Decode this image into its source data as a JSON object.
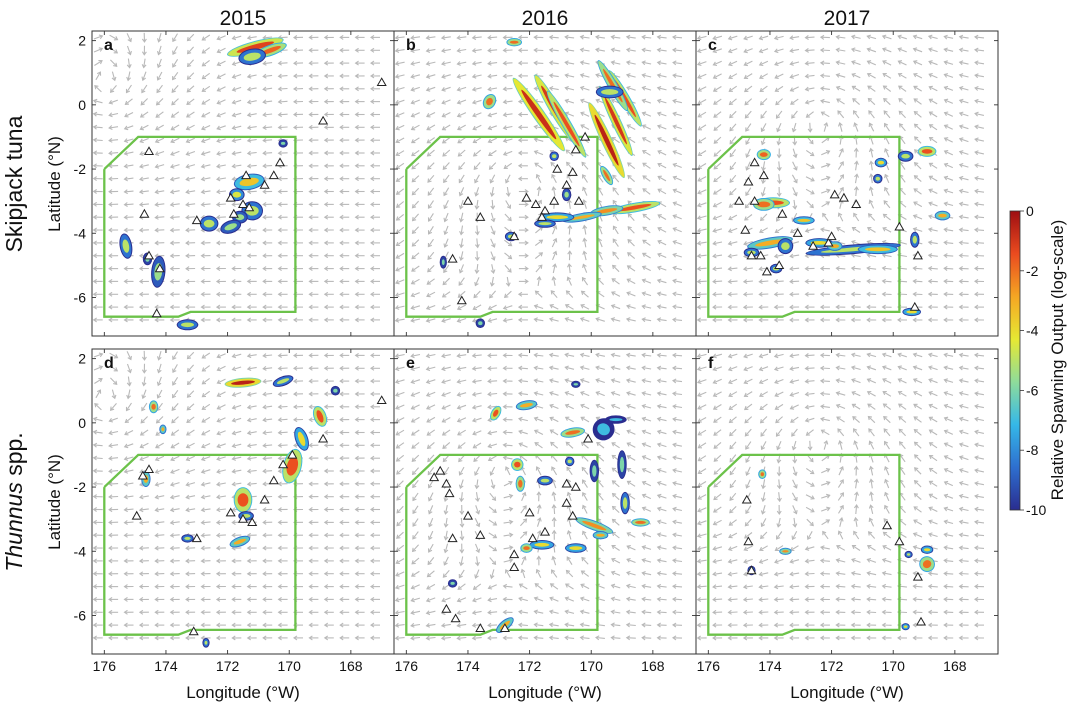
{
  "columns": [
    "2015",
    "2016",
    "2017"
  ],
  "rows": [
    {
      "label_parts": [
        {
          "text": "Skipjack tuna",
          "italic": false
        }
      ]
    },
    {
      "label_parts": [
        {
          "text": "Thunnus",
          "italic": true
        },
        {
          "text": " spp.",
          "italic": false
        }
      ]
    }
  ],
  "axes": {
    "xlabel": "Longitude (°W)",
    "ylabel": "Latitude (°N)",
    "xlim": [
      176.4,
      166.6
    ],
    "ylim": [
      -7.2,
      2.3
    ],
    "xticks": [
      176,
      174,
      172,
      170,
      168
    ],
    "yticks": [
      2,
      0,
      -2,
      -4,
      -6
    ]
  },
  "colorbar": {
    "label": "Relative Spawning Output (log-scale)",
    "range": [
      -10,
      0
    ],
    "ticks": [
      0,
      -2,
      -4,
      -6,
      -8,
      -10
    ],
    "colors": [
      "#2a2d8f",
      "#2e6fcf",
      "#35b8e8",
      "#8fdc9a",
      "#e6e833",
      "#f5a623",
      "#ea4b1f",
      "#9e0e12"
    ]
  },
  "colors": {
    "boundary": "#6cc24a",
    "current_arrow": "#b9b9b9",
    "marker": "#222222"
  },
  "boundary_polygon": [
    [
      176,
      -2
    ],
    [
      174.9,
      -1
    ],
    [
      169.8,
      -1
    ],
    [
      169.8,
      -6.45
    ],
    [
      173.2,
      -6.45
    ],
    [
      173.6,
      -6.6
    ],
    [
      176,
      -6.6
    ],
    [
      176,
      -2
    ]
  ],
  "panels": [
    {
      "letter": "a",
      "year": "2015",
      "species": "Skipjack tuna",
      "markers": [
        [
          174.55,
          -1.45
        ],
        [
          174.7,
          -3.4
        ],
        [
          174.55,
          -4.7
        ],
        [
          174.2,
          -5.1
        ],
        [
          174.3,
          -6.5
        ],
        [
          173,
          -3.6
        ],
        [
          171.9,
          -2.9
        ],
        [
          171.5,
          -3.1
        ],
        [
          171.3,
          -3.2
        ],
        [
          171.8,
          -3.4
        ],
        [
          170.8,
          -2.5
        ],
        [
          170.5,
          -2.2
        ],
        [
          170.3,
          -1.8
        ],
        [
          171.4,
          -2.2
        ],
        [
          168.9,
          -0.5
        ],
        [
          167,
          0.7
        ]
      ],
      "patches": [
        [
          171.1,
          1.8,
          0.9,
          0.14,
          -15,
          -1.2
        ],
        [
          170.6,
          1.7,
          0.5,
          0.12,
          -20,
          -1.8
        ],
        [
          171.2,
          1.5,
          0.4,
          0.2,
          -10,
          -5
        ],
        [
          175.3,
          -4.4,
          0.15,
          0.35,
          -10,
          -5
        ],
        [
          174.25,
          -5.2,
          0.18,
          0.45,
          5,
          -5.5
        ],
        [
          174.6,
          -4.8,
          0.1,
          0.15,
          0,
          -6
        ],
        [
          172.6,
          -3.7,
          0.25,
          0.2,
          0,
          -5
        ],
        [
          171.2,
          -3.3,
          0.3,
          0.25,
          0,
          -5
        ],
        [
          171.6,
          -3.5,
          0.2,
          0.15,
          0,
          -5.5
        ],
        [
          171.9,
          -3.8,
          0.3,
          0.15,
          -20,
          -5.5
        ],
        [
          171.3,
          -2.4,
          0.45,
          0.2,
          -10,
          -3.5
        ],
        [
          171.7,
          -2.8,
          0.2,
          0.15,
          0,
          -4.5
        ],
        [
          170.2,
          -1.2,
          0.1,
          0.08,
          0,
          -6
        ],
        [
          173.3,
          -6.85,
          0.3,
          0.12,
          0,
          -5
        ]
      ],
      "vortices": [
        [
          176,
          0.6,
          3.2,
          -1
        ]
      ]
    },
    {
      "letter": "b",
      "year": "2016",
      "species": "Skipjack tuna",
      "markers": [
        [
          174,
          -3
        ],
        [
          173.6,
          -3.5
        ],
        [
          174.5,
          -4.8
        ],
        [
          174.2,
          -6.1
        ],
        [
          172.5,
          -4.1
        ],
        [
          172.1,
          -2.9
        ],
        [
          171.8,
          -3.1
        ],
        [
          171.5,
          -3.3
        ],
        [
          171.2,
          -3.0
        ],
        [
          171.6,
          -3.5
        ],
        [
          170.8,
          -2.5
        ],
        [
          170.6,
          -2.1
        ],
        [
          171.1,
          -2.0
        ],
        [
          170.5,
          -1.4
        ],
        [
          170.2,
          -1.0
        ],
        [
          170.4,
          -3.0
        ]
      ],
      "patches": [
        [
          173.3,
          0.1,
          0.15,
          0.2,
          30,
          -2
        ],
        [
          172.5,
          1.95,
          0.2,
          0.08,
          0,
          -2
        ],
        [
          171.7,
          -0.3,
          1.4,
          0.14,
          55,
          -0.8
        ],
        [
          171.2,
          -0.1,
          1.2,
          0.12,
          60,
          -1
        ],
        [
          170.8,
          -0.6,
          1.2,
          0.1,
          60,
          -1.5
        ],
        [
          169.5,
          -1.1,
          1.3,
          0.12,
          65,
          -0.5
        ],
        [
          169.2,
          -0.5,
          1.2,
          0.1,
          65,
          -1
        ],
        [
          168.9,
          0.2,
          1,
          0.1,
          60,
          -1.5
        ],
        [
          169.3,
          0.6,
          0.9,
          0.1,
          60,
          -2
        ],
        [
          169.4,
          0.4,
          0.4,
          0.15,
          0,
          -5
        ],
        [
          168.6,
          -3.2,
          0.8,
          0.1,
          -10,
          -1.5
        ],
        [
          169.5,
          -3.3,
          0.5,
          0.1,
          -10,
          -2.5
        ],
        [
          170.3,
          -3.5,
          0.6,
          0.08,
          -10,
          -3
        ],
        [
          171.1,
          -3.5,
          0.5,
          0.1,
          0,
          -4
        ],
        [
          170.8,
          -2.8,
          0.1,
          0.15,
          0,
          -5.5
        ],
        [
          171.5,
          -3.7,
          0.3,
          0.08,
          0,
          -5
        ],
        [
          172.6,
          -4.1,
          0.15,
          0.1,
          0,
          -5
        ],
        [
          169.5,
          -2.2,
          0.3,
          0.08,
          60,
          -2
        ],
        [
          173.6,
          -6.8,
          0.1,
          0.1,
          0,
          -6
        ],
        [
          174.8,
          -4.9,
          0.05,
          0.15,
          0,
          -6
        ],
        [
          171.2,
          -1.6,
          0.1,
          0.1,
          0,
          -5
        ]
      ],
      "vortices": [
        [
          172.2,
          -2.3,
          4,
          1
        ]
      ]
    },
    {
      "letter": "c",
      "year": "2017",
      "species": "Skipjack tuna",
      "markers": [
        [
          174.5,
          -1.8
        ],
        [
          174.7,
          -2.4
        ],
        [
          174.2,
          -2.2
        ],
        [
          175,
          -3
        ],
        [
          174.5,
          -3
        ],
        [
          173.6,
          -3.4
        ],
        [
          174.8,
          -3.9
        ],
        [
          174.6,
          -4.7
        ],
        [
          174.3,
          -4.7
        ],
        [
          174.1,
          -5.2
        ],
        [
          173.7,
          -5
        ],
        [
          173.1,
          -4.0
        ],
        [
          172.6,
          -4.4
        ],
        [
          172.1,
          -4.3
        ],
        [
          172,
          -4.1
        ],
        [
          171.9,
          -2.8
        ],
        [
          171.6,
          -2.9
        ],
        [
          171.2,
          -3.1
        ],
        [
          169.8,
          -3.8
        ],
        [
          169.2,
          -4.7
        ],
        [
          169.3,
          -6.3
        ]
      ],
      "patches": [
        [
          174.2,
          -1.55,
          0.18,
          0.12,
          0,
          -1.8
        ],
        [
          173.9,
          -3.05,
          0.5,
          0.12,
          0,
          -1.5
        ],
        [
          174.2,
          -3.1,
          0.3,
          0.15,
          0,
          -2
        ],
        [
          172.9,
          -3.6,
          0.3,
          0.08,
          0,
          -3.5
        ],
        [
          174,
          -4.3,
          0.7,
          0.12,
          -10,
          -3
        ],
        [
          173.5,
          -4.4,
          0.2,
          0.2,
          0,
          -5
        ],
        [
          171.3,
          -4.5,
          1.5,
          0.1,
          -5,
          -5
        ],
        [
          172.4,
          -4.3,
          0.4,
          0.1,
          0,
          -4
        ],
        [
          171.9,
          -4.4,
          0.2,
          0.1,
          0,
          -3
        ],
        [
          170.5,
          -4.5,
          0.6,
          0.1,
          0,
          -3.5
        ],
        [
          170.4,
          -1.8,
          0.15,
          0.1,
          0,
          -4
        ],
        [
          170.5,
          -2.3,
          0.1,
          0.1,
          0,
          -5
        ],
        [
          169.6,
          -1.6,
          0.2,
          0.12,
          0,
          -5
        ],
        [
          168.9,
          -1.45,
          0.25,
          0.12,
          0,
          -1.5
        ],
        [
          168.4,
          -3.45,
          0.2,
          0.1,
          0,
          -3
        ],
        [
          169.3,
          -4.2,
          0.1,
          0.2,
          0,
          -5
        ],
        [
          169.4,
          -6.45,
          0.25,
          0.08,
          0,
          -4
        ],
        [
          174.6,
          -4.6,
          0.2,
          0.1,
          0,
          -5
        ],
        [
          173.8,
          -5.1,
          0.15,
          0.1,
          0,
          -5
        ]
      ],
      "vortices": [
        [
          172.4,
          -0.5,
          3.5,
          1
        ]
      ]
    },
    {
      "letter": "d",
      "year": "2015",
      "species": "Thunnus spp.",
      "markers": [
        [
          174.55,
          -1.45
        ],
        [
          174.75,
          -1.65
        ],
        [
          174.95,
          -2.9
        ],
        [
          173,
          -3.6
        ],
        [
          171.9,
          -2.8
        ],
        [
          171.5,
          -3
        ],
        [
          171.2,
          -3.1
        ],
        [
          170.8,
          -2.4
        ],
        [
          170.5,
          -1.8
        ],
        [
          170.2,
          -1.3
        ],
        [
          169.9,
          -1
        ],
        [
          168.9,
          -0.5
        ],
        [
          167,
          0.7
        ],
        [
          173.1,
          -6.5
        ]
      ],
      "patches": [
        [
          171.5,
          1.25,
          0.55,
          0.1,
          -5,
          -0.5
        ],
        [
          174.4,
          0.5,
          0.1,
          0.15,
          0,
          -2
        ],
        [
          174.1,
          -0.2,
          0.05,
          0.1,
          0,
          -3
        ],
        [
          174.65,
          -1.75,
          0.1,
          0.2,
          0,
          -3
        ],
        [
          171.5,
          -2.4,
          0.25,
          0.35,
          0,
          -1.5
        ],
        [
          171.4,
          -2.9,
          0.2,
          0.1,
          0,
          -5
        ],
        [
          171.6,
          -3.7,
          0.3,
          0.1,
          -20,
          -3
        ],
        [
          173.3,
          -3.6,
          0.15,
          0.08,
          0,
          -5
        ],
        [
          169.9,
          -1.35,
          0.25,
          0.5,
          15,
          -1.5
        ],
        [
          169.6,
          -0.5,
          0.35,
          0.15,
          70,
          -4
        ],
        [
          169,
          0.2,
          0.3,
          0.15,
          70,
          -1.5
        ],
        [
          170.2,
          1.3,
          0.3,
          0.1,
          -20,
          -5
        ],
        [
          168.5,
          1,
          0.1,
          0.1,
          0,
          -6
        ],
        [
          172.7,
          -6.85,
          0.05,
          0.1,
          0,
          -5
        ]
      ],
      "vortices": [
        [
          176,
          0.6,
          3.2,
          -1
        ]
      ]
    },
    {
      "letter": "e",
      "year": "2016",
      "species": "Thunnus spp.",
      "markers": [
        [
          175.1,
          -1.7
        ],
        [
          174.9,
          -1.5
        ],
        [
          174.7,
          -1.9
        ],
        [
          174.6,
          -2.2
        ],
        [
          174,
          -2.9
        ],
        [
          174.5,
          -3.6
        ],
        [
          173.6,
          -3.5
        ],
        [
          172.5,
          -4.1
        ],
        [
          172.5,
          -4.5
        ],
        [
          172,
          -2.8
        ],
        [
          171.9,
          -3.6
        ],
        [
          171.5,
          -3.4
        ],
        [
          170.8,
          -2.5
        ],
        [
          170.5,
          -2.0
        ],
        [
          170.6,
          -2.9
        ],
        [
          170.1,
          -0.5
        ],
        [
          170.8,
          -1.9
        ],
        [
          174.7,
          -5.8
        ],
        [
          174.4,
          -6.1
        ],
        [
          173.6,
          -6.4
        ],
        [
          172.8,
          -6.4
        ]
      ],
      "patches": [
        [
          173.1,
          0.3,
          0.1,
          0.2,
          30,
          -1.5
        ],
        [
          172.1,
          0.55,
          0.3,
          0.1,
          -10,
          -3
        ],
        [
          172.4,
          -1.3,
          0.15,
          0.15,
          0,
          -1.5
        ],
        [
          172.3,
          -1.9,
          0.1,
          0.2,
          0,
          -2
        ],
        [
          171.5,
          -1.8,
          0.2,
          0.1,
          0,
          -5
        ],
        [
          170.6,
          -0.3,
          0.35,
          0.1,
          -10,
          -2
        ],
        [
          169.6,
          -0.2,
          0.3,
          0.3,
          30,
          -7
        ],
        [
          169.9,
          -1.5,
          0.1,
          0.3,
          0,
          -6
        ],
        [
          169,
          -1.3,
          0.1,
          0.4,
          0,
          -6
        ],
        [
          168.9,
          -2.5,
          0.1,
          0.3,
          0,
          -5
        ],
        [
          169.9,
          -3.2,
          0.6,
          0.1,
          20,
          -2.5
        ],
        [
          168.4,
          -3.1,
          0.25,
          0.08,
          0,
          -2
        ],
        [
          169.7,
          -3.5,
          0.2,
          0.08,
          0,
          -3
        ],
        [
          171.6,
          -3.8,
          0.35,
          0.1,
          0,
          -4
        ],
        [
          170.5,
          -3.9,
          0.3,
          0.1,
          0,
          -4
        ],
        [
          172.1,
          -3.9,
          0.15,
          0.1,
          0,
          -2
        ],
        [
          170.7,
          -1.2,
          0.1,
          0.1,
          0,
          -5
        ],
        [
          174.5,
          -5,
          0.1,
          0.08,
          0,
          -6
        ],
        [
          172.8,
          -6.3,
          0.3,
          0.1,
          -40,
          -3
        ],
        [
          170.5,
          1.2,
          0.1,
          0.05,
          0,
          -6
        ],
        [
          169.2,
          0.1,
          0.3,
          0.08,
          0,
          -7
        ]
      ],
      "vortices": [
        [
          172.8,
          -1.5,
          3.8,
          1
        ]
      ]
    },
    {
      "letter": "f",
      "year": "2017",
      "species": "Thunnus spp.",
      "markers": [
        [
          174.75,
          -2.4
        ],
        [
          174.7,
          -3.7
        ],
        [
          174.6,
          -4.6
        ],
        [
          170.2,
          -3.2
        ],
        [
          169.8,
          -3.7
        ],
        [
          169.2,
          -4.8
        ],
        [
          169.1,
          -6.2
        ]
      ],
      "patches": [
        [
          174.25,
          -1.6,
          0.08,
          0.1,
          0,
          -2
        ],
        [
          173.5,
          -4.0,
          0.15,
          0.06,
          0,
          -2.5
        ],
        [
          174.6,
          -4.6,
          0.08,
          0.1,
          0,
          -5
        ],
        [
          168.9,
          -4.4,
          0.2,
          0.2,
          -30,
          -2
        ],
        [
          168.9,
          -3.95,
          0.15,
          0.08,
          0,
          -4
        ],
        [
          169.5,
          -4.1,
          0.08,
          0.06,
          0,
          -5
        ],
        [
          169.6,
          -6.35,
          0.08,
          0.06,
          0,
          -4
        ]
      ],
      "vortices": [
        [
          172.4,
          -0.5,
          3.5,
          1
        ]
      ]
    }
  ]
}
